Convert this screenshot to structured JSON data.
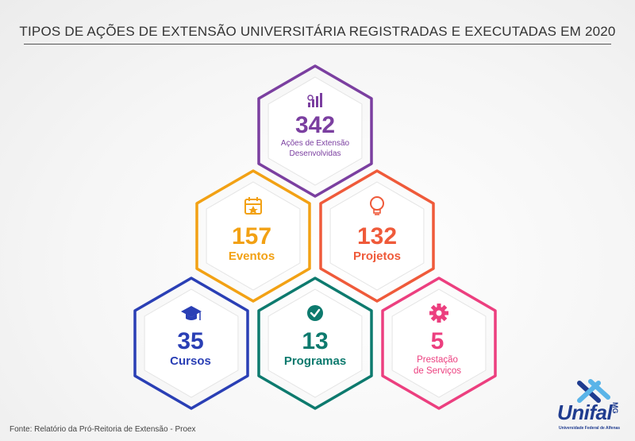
{
  "title": "TIPOS DE AÇÕES DE EXTENSÃO UNIVERSITÁRIA REGISTRADAS E EXECUTADAS EM 2020",
  "source": "Fonte: Relatório da Pró-Reitoria de Extensão - Proex",
  "logo": {
    "word": "Unifal",
    "suffix": "MG",
    "subtitle": "Universidade Federal de Alfenas"
  },
  "items": [
    {
      "value": "342",
      "label_line1": "Ações de Extensão",
      "label_line2": "Desenvolvidas",
      "color": "#7b3fa0",
      "icon": "chart-icon"
    },
    {
      "value": "157",
      "label_line1": "Eventos",
      "label_line2": "",
      "color": "#f2a114",
      "icon": "calendar-icon"
    },
    {
      "value": "132",
      "label_line1": "Projetos",
      "label_line2": "",
      "color": "#ef5a3a",
      "icon": "lightbulb-icon"
    },
    {
      "value": "35",
      "label_line1": "Cursos",
      "label_line2": "",
      "color": "#2a3fb5",
      "icon": "graduation-cap-icon"
    },
    {
      "value": "13",
      "label_line1": "Programas",
      "label_line2": "",
      "color": "#0d7a6e",
      "icon": "check-circle-icon"
    },
    {
      "value": "5",
      "label_line1": "Prestação",
      "label_line2": "de Serviços",
      "color": "#ec3f7f",
      "icon": "gear-icon"
    }
  ]
}
